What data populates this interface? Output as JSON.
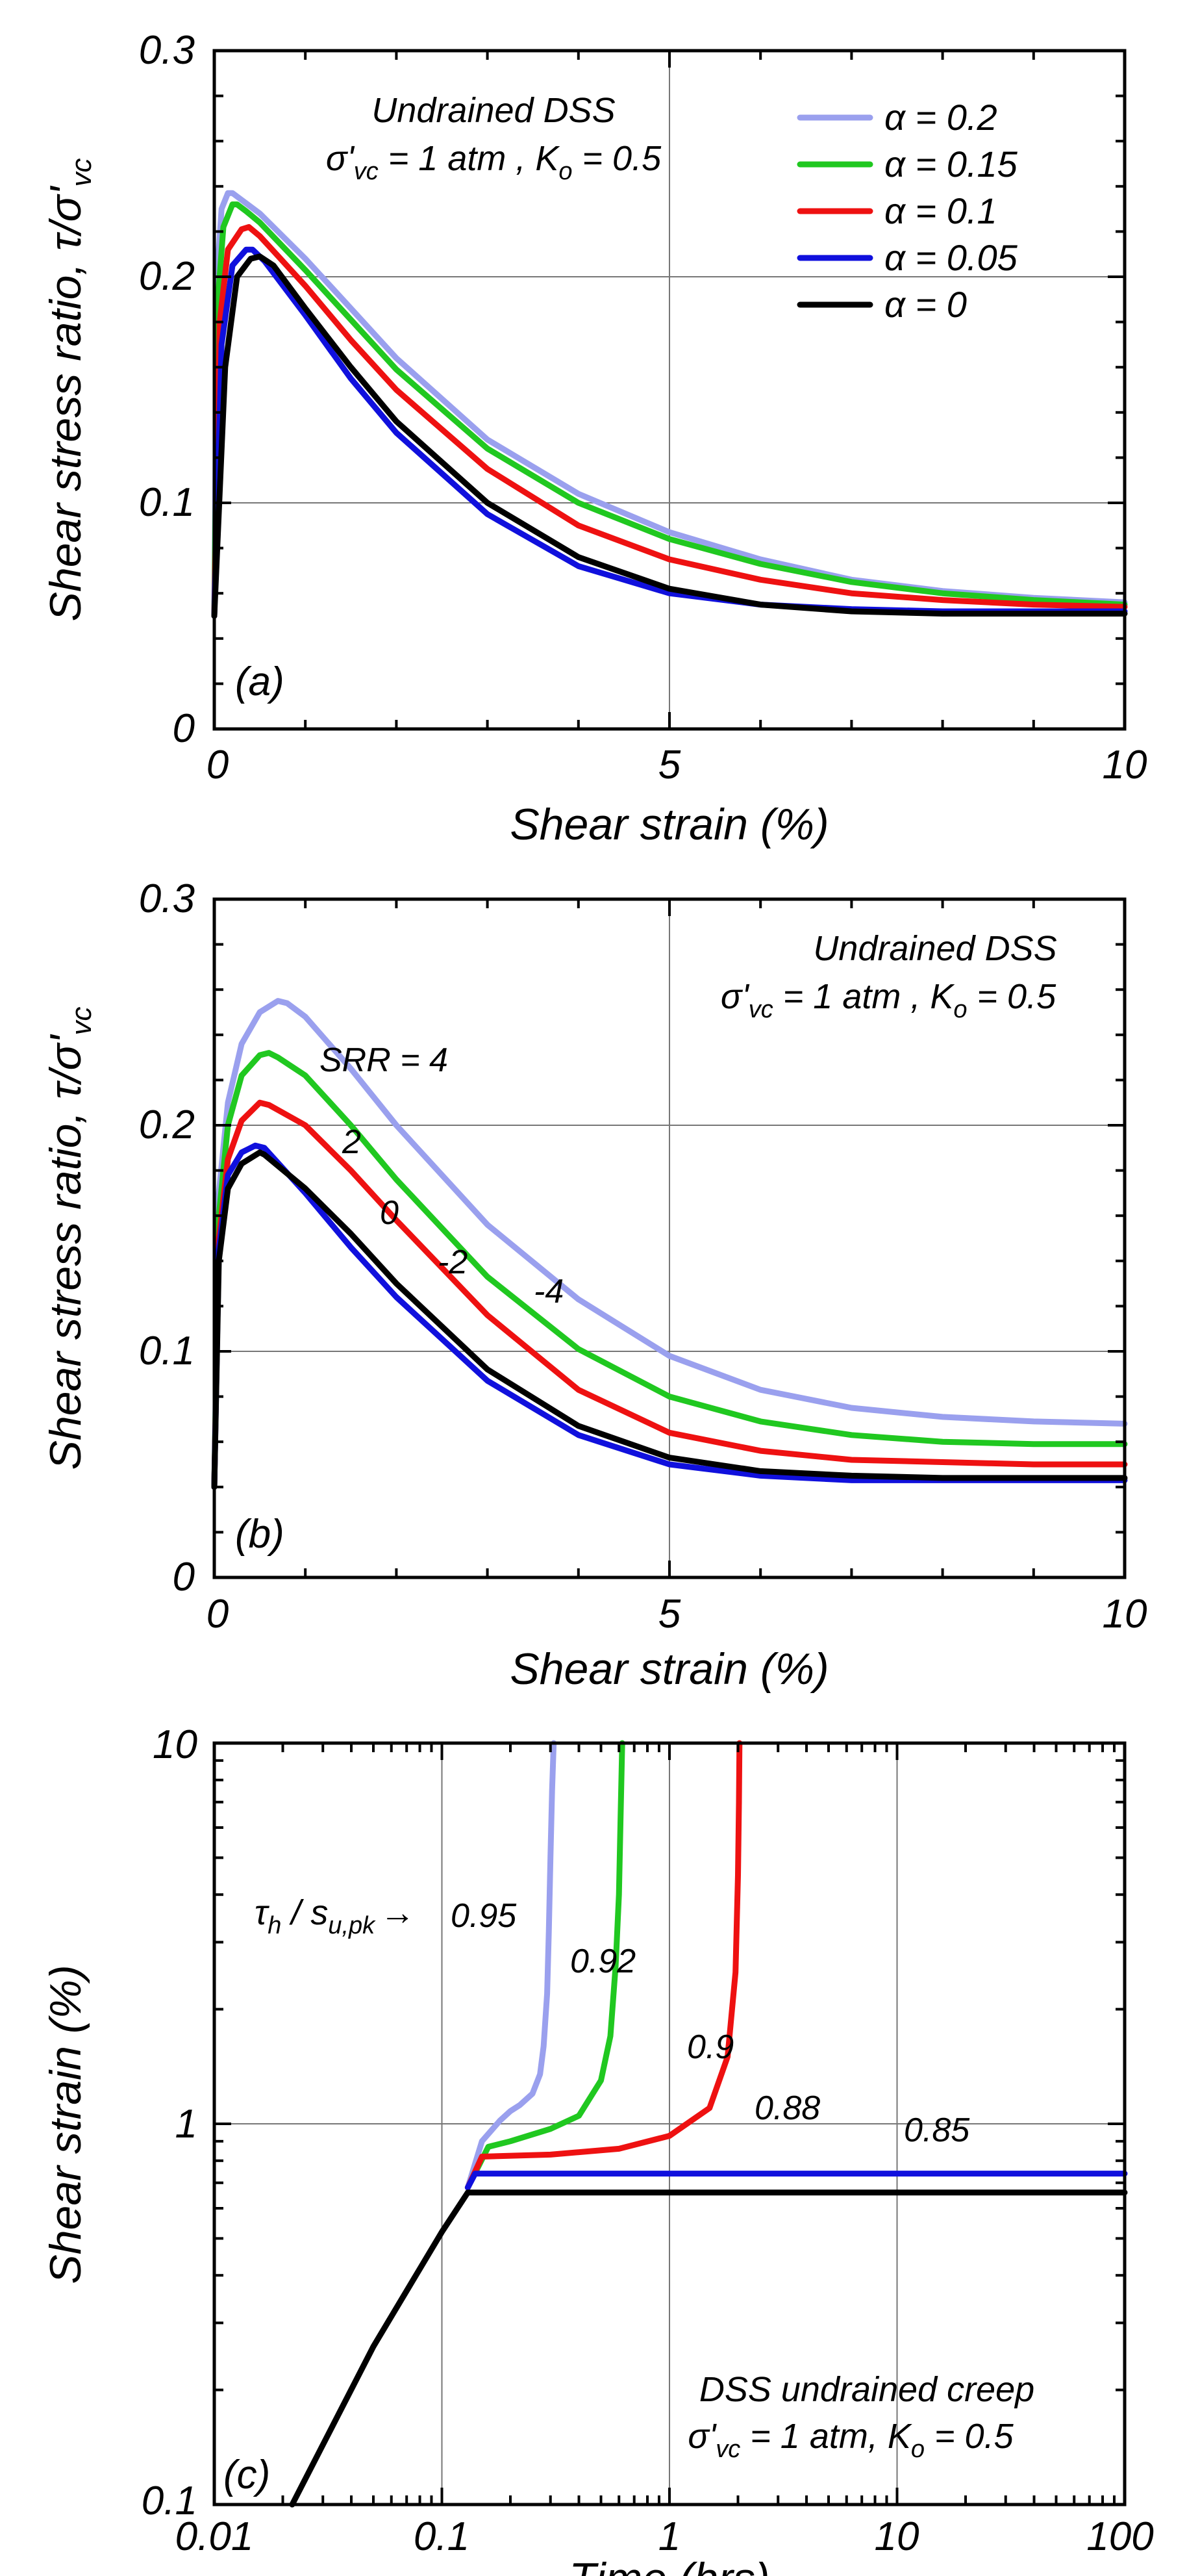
{
  "chart_data": [
    {
      "type": "line",
      "panel_label": "(a)",
      "xlabel": "Shear strain (%)",
      "ylabel": "Shear stress ratio, τ/σ'vc",
      "ylabel_main": "Shear stress ratio, τ/σ'",
      "ylabel_sub": "vc",
      "xlim": [
        0,
        10
      ],
      "ylim": [
        0,
        0.3
      ],
      "xticks": [
        "0",
        "5",
        "10"
      ],
      "yticks": [
        "0",
        "0.1",
        "0.2",
        "0.3"
      ],
      "annotation": {
        "line1": "Undrained DSS",
        "line2_a": "σ'",
        "line2_sub": "vc",
        "line2_b": " = 1 atm , K",
        "line2_sub2": "o",
        "line2_c": " = 0.5"
      },
      "series": [
        {
          "name": "α = 0.2",
          "color": "#9aa0ee",
          "x": [
            0,
            0.03,
            0.08,
            0.15,
            0.2,
            0.3,
            0.5,
            1.0,
            1.5,
            2.0,
            3.0,
            4.0,
            5.0,
            6.0,
            7.0,
            8.0,
            9.0,
            10.0
          ],
          "y": [
            0.05,
            0.2,
            0.23,
            0.237,
            0.237,
            0.234,
            0.228,
            0.208,
            0.186,
            0.164,
            0.128,
            0.104,
            0.087,
            0.075,
            0.066,
            0.061,
            0.058,
            0.056
          ]
        },
        {
          "name": "α = 0.15",
          "color": "#20c820",
          "x": [
            0,
            0.04,
            0.1,
            0.2,
            0.25,
            0.35,
            0.5,
            1.0,
            1.5,
            2.0,
            3.0,
            4.0,
            5.0,
            6.0,
            7.0,
            8.0,
            9.0,
            10.0
          ],
          "y": [
            0.05,
            0.19,
            0.222,
            0.232,
            0.232,
            0.229,
            0.224,
            0.203,
            0.181,
            0.159,
            0.124,
            0.1,
            0.084,
            0.073,
            0.065,
            0.06,
            0.057,
            0.055
          ]
        },
        {
          "name": "α = 0.1",
          "color": "#ee1111",
          "x": [
            0,
            0.06,
            0.15,
            0.3,
            0.38,
            0.5,
            1.0,
            1.5,
            2.0,
            3.0,
            4.0,
            5.0,
            6.0,
            7.0,
            8.0,
            9.0,
            10.0
          ],
          "y": [
            0.05,
            0.18,
            0.212,
            0.221,
            0.222,
            0.218,
            0.196,
            0.172,
            0.15,
            0.115,
            0.09,
            0.075,
            0.066,
            0.06,
            0.057,
            0.055,
            0.054
          ]
        },
        {
          "name": "α = 0.05",
          "color": "#1010dd",
          "x": [
            0,
            0.08,
            0.2,
            0.35,
            0.42,
            0.55,
            1.0,
            1.5,
            2.0,
            3.0,
            4.0,
            5.0,
            6.0,
            7.0,
            8.0,
            9.0,
            10.0
          ],
          "y": [
            0.05,
            0.17,
            0.205,
            0.212,
            0.212,
            0.207,
            0.183,
            0.155,
            0.131,
            0.095,
            0.072,
            0.06,
            0.055,
            0.053,
            0.052,
            0.052,
            0.052
          ]
        },
        {
          "name": "α = 0",
          "color": "#000000",
          "x": [
            0,
            0.12,
            0.25,
            0.4,
            0.5,
            0.65,
            1.0,
            1.5,
            2.0,
            3.0,
            4.0,
            5.0,
            6.0,
            7.0,
            8.0,
            9.0,
            10.0
          ],
          "y": [
            0.05,
            0.16,
            0.2,
            0.208,
            0.209,
            0.205,
            0.186,
            0.16,
            0.136,
            0.1,
            0.076,
            0.062,
            0.055,
            0.052,
            0.051,
            0.051,
            0.051
          ]
        }
      ]
    },
    {
      "type": "line",
      "panel_label": "(b)",
      "xlabel": "Shear strain (%)",
      "ylabel": "Shear stress ratio, τ/σ'vc",
      "ylabel_main": "Shear stress ratio, τ/σ'",
      "ylabel_sub": "vc",
      "xlim": [
        0,
        10
      ],
      "ylim": [
        0,
        0.3
      ],
      "xticks": [
        "0",
        "5",
        "10"
      ],
      "yticks": [
        "0",
        "0.1",
        "0.2",
        "0.3"
      ],
      "annotation": {
        "line1": "Undrained DSS",
        "line2_a": "σ'",
        "line2_sub": "vc",
        "line2_b": " = 1 atm , K",
        "line2_sub2": "o",
        "line2_c": " = 0.5"
      },
      "curve_labels": [
        "SRR = 4",
        "2",
        "0",
        "-2",
        "-4"
      ],
      "series": [
        {
          "name": "SRR = 4",
          "color": "#9aa0ee",
          "x": [
            0,
            0.05,
            0.15,
            0.3,
            0.5,
            0.7,
            0.8,
            1.0,
            1.5,
            2.0,
            3.0,
            4.0,
            5.0,
            6.0,
            7.0,
            8.0,
            9.0,
            10.0
          ],
          "y": [
            0.04,
            0.17,
            0.21,
            0.236,
            0.25,
            0.255,
            0.254,
            0.248,
            0.225,
            0.2,
            0.156,
            0.123,
            0.098,
            0.083,
            0.075,
            0.071,
            0.069,
            0.068
          ]
        },
        {
          "name": "SRR = 2",
          "color": "#20c820",
          "x": [
            0,
            0.05,
            0.15,
            0.3,
            0.5,
            0.6,
            0.7,
            1.0,
            1.5,
            2.0,
            3.0,
            4.0,
            5.0,
            6.0,
            7.0,
            8.0,
            9.0,
            10.0
          ],
          "y": [
            0.04,
            0.16,
            0.2,
            0.222,
            0.231,
            0.232,
            0.23,
            0.222,
            0.2,
            0.176,
            0.133,
            0.101,
            0.08,
            0.069,
            0.063,
            0.06,
            0.059,
            0.059
          ]
        },
        {
          "name": "SRR = 0",
          "color": "#ee1111",
          "x": [
            0,
            0.05,
            0.15,
            0.3,
            0.5,
            0.6,
            1.0,
            1.5,
            2.0,
            3.0,
            4.0,
            5.0,
            6.0,
            7.0,
            8.0,
            9.0,
            10.0
          ],
          "y": [
            0.04,
            0.15,
            0.185,
            0.202,
            0.21,
            0.209,
            0.2,
            0.18,
            0.158,
            0.116,
            0.083,
            0.064,
            0.056,
            0.052,
            0.051,
            0.05,
            0.05
          ]
        },
        {
          "name": "SRR = -2",
          "color": "#000000",
          "x": [
            0,
            0.05,
            0.15,
            0.3,
            0.5,
            0.55,
            1.0,
            1.5,
            2.0,
            3.0,
            4.0,
            5.0,
            6.0,
            7.0,
            8.0,
            9.0,
            10.0
          ],
          "y": [
            0.04,
            0.14,
            0.172,
            0.183,
            0.188,
            0.187,
            0.172,
            0.152,
            0.13,
            0.092,
            0.067,
            0.053,
            0.047,
            0.045,
            0.044,
            0.044,
            0.044
          ]
        },
        {
          "name": "SRR = -4",
          "color": "#1010dd",
          "x": [
            0,
            0.05,
            0.15,
            0.3,
            0.45,
            0.55,
            1.0,
            1.5,
            2.0,
            3.0,
            4.0,
            5.0,
            6.0,
            7.0,
            8.0,
            9.0,
            10.0
          ],
          "y": [
            0.04,
            0.145,
            0.178,
            0.188,
            0.191,
            0.19,
            0.17,
            0.146,
            0.124,
            0.087,
            0.063,
            0.05,
            0.045,
            0.043,
            0.043,
            0.043,
            0.043
          ]
        }
      ]
    },
    {
      "type": "line",
      "scale": "log-log",
      "panel_label": "(c)",
      "xlabel": "Time (hrs)",
      "ylabel": "Shear strain (%)",
      "xlim": [
        0.01,
        100
      ],
      "ylim": [
        0.1,
        10
      ],
      "xticks": [
        "0.01",
        "0.1",
        "1",
        "10",
        "100"
      ],
      "yticks": [
        "0.1",
        "1",
        "10"
      ],
      "annotation": {
        "line1": "DSS undrained creep",
        "line2_a": "σ'",
        "line2_sub": "vc",
        "line2_b": " = 1 atm, K",
        "line2_sub2": "o",
        "line2_c": " = 0.5"
      },
      "ratio_label": {
        "tau": "τ",
        "tau_sub": "h",
        "slash": " / s",
        "s_sub": "u,pk",
        "arrow": "→"
      },
      "curve_labels": [
        "0.95",
        "0.92",
        "0.9",
        "0.88",
        "0.85"
      ],
      "series": [
        {
          "name": "0.95",
          "color": "#9aa0ee",
          "x": [
            0.13,
            0.15,
            0.18,
            0.2,
            0.22,
            0.25,
            0.27,
            0.28,
            0.29,
            0.295,
            0.3,
            0.305,
            0.31
          ],
          "y": [
            0.68,
            0.9,
            1.02,
            1.08,
            1.12,
            1.2,
            1.35,
            1.6,
            2.2,
            3.2,
            5.0,
            7.5,
            10
          ]
        },
        {
          "name": "0.92",
          "color": "#20c820",
          "x": [
            0.13,
            0.16,
            0.2,
            0.3,
            0.4,
            0.5,
            0.55,
            0.58,
            0.6,
            0.61,
            0.62
          ],
          "y": [
            0.68,
            0.87,
            0.9,
            0.97,
            1.05,
            1.3,
            1.7,
            2.6,
            4.0,
            6.5,
            10
          ]
        },
        {
          "name": "0.9",
          "color": "#ee1111",
          "x": [
            0.13,
            0.15,
            0.3,
            0.6,
            1.0,
            1.5,
            1.8,
            1.95,
            2.0,
            2.02,
            2.03
          ],
          "y": [
            0.68,
            0.82,
            0.83,
            0.86,
            0.93,
            1.1,
            1.5,
            2.5,
            4.5,
            7.0,
            10
          ]
        },
        {
          "name": "0.88",
          "color": "#1010dd",
          "x": [
            0.13,
            0.14,
            1.0,
            10,
            100
          ],
          "y": [
            0.68,
            0.74,
            0.74,
            0.74,
            0.74
          ]
        },
        {
          "name": "0.85",
          "color": "#000000",
          "x": [
            0.022,
            0.05,
            0.1,
            0.13,
            1.0,
            10,
            100
          ],
          "y": [
            0.1,
            0.26,
            0.52,
            0.66,
            0.66,
            0.66,
            0.66
          ]
        }
      ]
    }
  ]
}
